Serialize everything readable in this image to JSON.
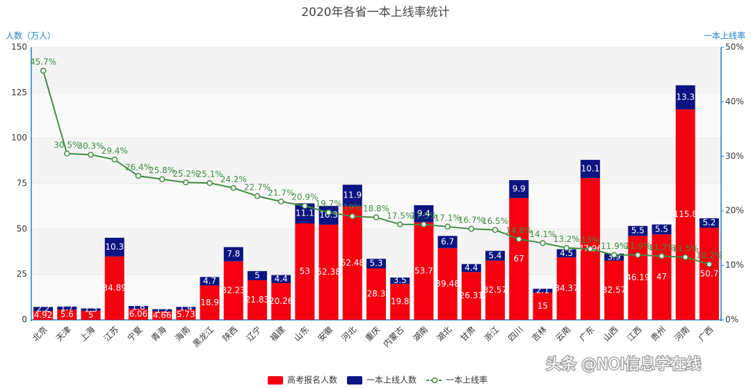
{
  "chart_data": {
    "type": "bar",
    "title": "2020年各省一本上线率统计",
    "y_axis_label": "人数（万人）",
    "y2_axis_label": "一本上线率",
    "categories": [
      "北京",
      "天津",
      "上海",
      "江苏",
      "宁夏",
      "青海",
      "海南",
      "黑龙江",
      "陕西",
      "辽宁",
      "福建",
      "山东",
      "安徽",
      "河北",
      "重庆",
      "内蒙古",
      "湖南",
      "湖北",
      "甘肃",
      "浙江",
      "四川",
      "吉林",
      "云南",
      "广东",
      "山西",
      "江西",
      "贵州",
      "河南",
      "广西"
    ],
    "series": [
      {
        "name": "高考报名人数",
        "color": "#f5000f",
        "values": [
          4.92,
          5.6,
          5,
          34.89,
          6.06,
          4.66,
          5.73,
          18.9,
          32.23,
          21.83,
          20.26,
          53,
          52.38,
          62.48,
          28.3,
          19.8,
          53.7,
          39.48,
          26.31,
          32.57,
          67,
          15,
          34.37,
          77.96,
          32.57,
          46.19,
          47,
          115.8,
          50.7
        ]
      },
      {
        "name": "一本上线人数",
        "color": "#0c1581",
        "values": [
          2.2,
          1.7,
          1.3,
          10.3,
          1.6,
          1.2,
          1.4,
          4.7,
          7.8,
          5,
          4.4,
          11.1,
          10.3,
          11.9,
          5.3,
          3.5,
          9.4,
          6.7,
          4.4,
          5.4,
          9.9,
          2.1,
          4.5,
          10.1,
          3.9,
          5.5,
          5.5,
          13.3,
          5.2
        ]
      },
      {
        "name": "一本上线率",
        "type": "line",
        "axis": "y2",
        "color": "#3e8e41",
        "values": [
          45.7,
          30.5,
          30.3,
          29.4,
          26.4,
          25.8,
          25.2,
          25.1,
          24.2,
          22.7,
          21.7,
          20.9,
          19.7,
          19,
          18.8,
          17.5,
          17.5,
          17.1,
          16.7,
          16.5,
          14.8,
          14.1,
          13.2,
          13,
          11.9,
          11.9,
          11.7,
          11.5,
          10.2
        ],
        "value_labels": [
          "45.7%",
          "30.5%",
          "30.3%",
          "29.4%",
          "26.4%",
          "25.8%",
          "25.2%",
          "25.1%",
          "24.2%",
          "22.7%",
          "21.7%",
          "20.9%",
          "19.7%",
          "19%",
          "18.8%",
          "17.5%",
          "17.5%",
          "17.1%",
          "16.7%",
          "16.5%",
          "14.8%",
          "14.1%",
          "13.2%",
          "13%",
          "11.9%",
          "11.9%",
          "11.7%",
          "11.5%",
          "10.2%"
        ]
      }
    ],
    "ylim": [
      0,
      150
    ],
    "yticks": [
      0,
      25,
      50,
      75,
      100,
      125,
      150
    ],
    "y2lim": [
      0,
      50
    ],
    "y2ticks": [
      {
        "value": 0,
        "label": "0%"
      },
      {
        "value": 10,
        "label": "10%"
      },
      {
        "value": 20,
        "label": "20%"
      },
      {
        "value": 30,
        "label": "30%"
      },
      {
        "value": 40,
        "label": "40%"
      },
      {
        "value": 50,
        "label": "50%"
      }
    ],
    "grid": true,
    "legend": "bottom"
  },
  "watermark": "头条 @NOI信息学在线"
}
